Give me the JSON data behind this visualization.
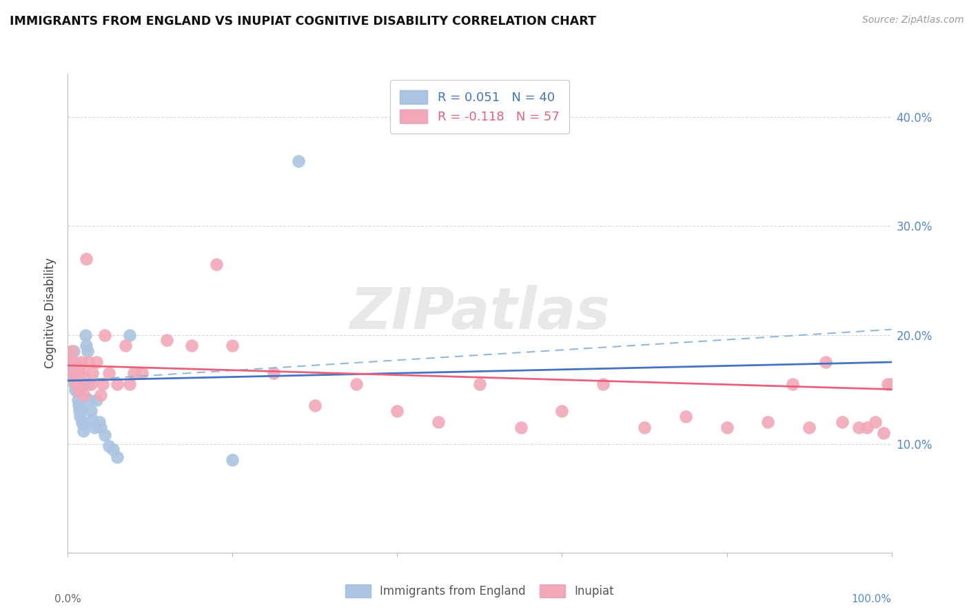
{
  "title": "IMMIGRANTS FROM ENGLAND VS INUPIAT COGNITIVE DISABILITY CORRELATION CHART",
  "source": "Source: ZipAtlas.com",
  "ylabel": "Cognitive Disability",
  "xlim": [
    0,
    1.0
  ],
  "ylim": [
    0.0,
    0.44
  ],
  "legend_r1": "R = 0.051   N = 40",
  "legend_r2": "R = -0.118   N = 57",
  "watermark": "ZIPatlas",
  "blue_color": "#aac4e2",
  "pink_color": "#f2a8b8",
  "blue_line_color": "#4472c4",
  "pink_line_color": "#e8607a",
  "blue_dashed_color": "#90b8d8",
  "axis_color": "#bbbbbb",
  "grid_color": "#d8d8d8",
  "right_label_color": "#5588cc",
  "england_x": [
    0.003,
    0.005,
    0.006,
    0.007,
    0.007,
    0.008,
    0.008,
    0.009,
    0.009,
    0.01,
    0.01,
    0.011,
    0.011,
    0.012,
    0.013,
    0.014,
    0.015,
    0.016,
    0.017,
    0.018,
    0.019,
    0.02,
    0.021,
    0.022,
    0.024,
    0.025,
    0.026,
    0.028,
    0.03,
    0.032,
    0.035,
    0.038,
    0.04,
    0.045,
    0.05,
    0.055,
    0.06,
    0.075,
    0.2,
    0.28
  ],
  "england_y": [
    0.165,
    0.175,
    0.17,
    0.185,
    0.16,
    0.165,
    0.155,
    0.15,
    0.17,
    0.155,
    0.165,
    0.158,
    0.148,
    0.14,
    0.135,
    0.13,
    0.125,
    0.132,
    0.12,
    0.118,
    0.112,
    0.155,
    0.2,
    0.19,
    0.185,
    0.155,
    0.14,
    0.13,
    0.122,
    0.115,
    0.14,
    0.12,
    0.115,
    0.108,
    0.098,
    0.095,
    0.088,
    0.2,
    0.085,
    0.36
  ],
  "inupiat_x": [
    0.003,
    0.005,
    0.006,
    0.007,
    0.008,
    0.009,
    0.01,
    0.01,
    0.011,
    0.012,
    0.013,
    0.014,
    0.015,
    0.016,
    0.018,
    0.02,
    0.022,
    0.025,
    0.028,
    0.03,
    0.035,
    0.04,
    0.042,
    0.045,
    0.05,
    0.06,
    0.07,
    0.075,
    0.08,
    0.09,
    0.12,
    0.15,
    0.18,
    0.2,
    0.25,
    0.3,
    0.35,
    0.4,
    0.45,
    0.5,
    0.55,
    0.6,
    0.65,
    0.7,
    0.75,
    0.8,
    0.85,
    0.88,
    0.9,
    0.92,
    0.94,
    0.96,
    0.97,
    0.98,
    0.99,
    0.995,
    1.0
  ],
  "inupiat_y": [
    0.175,
    0.185,
    0.165,
    0.175,
    0.165,
    0.162,
    0.155,
    0.17,
    0.165,
    0.17,
    0.165,
    0.148,
    0.155,
    0.175,
    0.165,
    0.145,
    0.27,
    0.175,
    0.155,
    0.165,
    0.175,
    0.145,
    0.155,
    0.2,
    0.165,
    0.155,
    0.19,
    0.155,
    0.165,
    0.165,
    0.195,
    0.19,
    0.265,
    0.19,
    0.165,
    0.135,
    0.155,
    0.13,
    0.12,
    0.155,
    0.115,
    0.13,
    0.155,
    0.115,
    0.125,
    0.115,
    0.12,
    0.155,
    0.115,
    0.175,
    0.12,
    0.115,
    0.115,
    0.12,
    0.11,
    0.155,
    0.155
  ],
  "eng_line_x0": 0.0,
  "eng_line_y0": 0.158,
  "eng_line_x1": 1.0,
  "eng_line_y1": 0.175,
  "inp_line_x0": 0.0,
  "inp_line_y0": 0.172,
  "inp_line_x1": 1.0,
  "inp_line_y1": 0.15,
  "dash_line_x0": 0.0,
  "dash_line_y0": 0.158,
  "dash_line_x1": 1.0,
  "dash_line_y1": 0.205
}
